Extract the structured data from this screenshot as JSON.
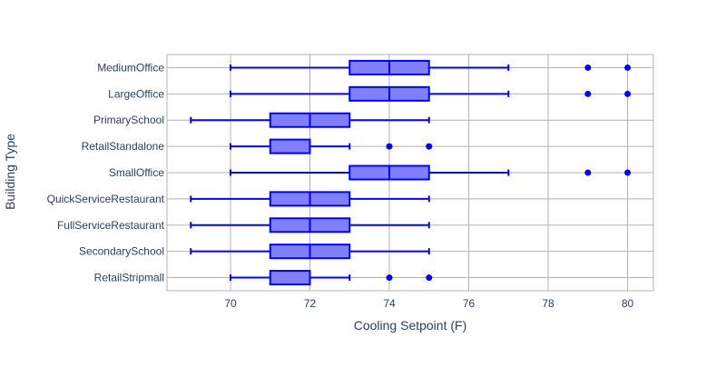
{
  "chart_data": {
    "type": "box",
    "orientation": "horizontal",
    "xlabel": "Cooling Setpoint (F)",
    "ylabel": "Building Type",
    "xlim": [
      68.4,
      80.65
    ],
    "xticks": [
      70,
      72,
      74,
      76,
      78,
      80
    ],
    "grid": true,
    "legend": "none",
    "categories": [
      "MediumOffice",
      "LargeOffice",
      "PrimarySchool",
      "RetailStandalone",
      "SmallOffice",
      "QuickServiceRestaurant",
      "FullServiceRestaurant",
      "SecondarySchool",
      "RetailStripmall"
    ],
    "boxes": [
      {
        "category": "MediumOffice",
        "min": 70,
        "q1": 73,
        "median": 74,
        "q3": 75,
        "max": 77,
        "outliers": [
          79,
          80
        ]
      },
      {
        "category": "LargeOffice",
        "min": 70,
        "q1": 73,
        "median": 74,
        "q3": 75,
        "max": 77,
        "outliers": [
          79,
          80
        ]
      },
      {
        "category": "PrimarySchool",
        "min": 69,
        "q1": 71,
        "median": 72,
        "q3": 73,
        "max": 75,
        "outliers": []
      },
      {
        "category": "RetailStandalone",
        "min": 70,
        "q1": 71,
        "median": 72,
        "q3": 72,
        "max": 73,
        "outliers": [
          74,
          75
        ]
      },
      {
        "category": "SmallOffice",
        "min": 70,
        "q1": 73,
        "median": 74,
        "q3": 75,
        "max": 77,
        "outliers": [
          79,
          80
        ]
      },
      {
        "category": "QuickServiceRestaurant",
        "min": 69,
        "q1": 71,
        "median": 72,
        "q3": 73,
        "max": 75,
        "outliers": []
      },
      {
        "category": "FullServiceRestaurant",
        "min": 69,
        "q1": 71,
        "median": 72,
        "q3": 73,
        "max": 75,
        "outliers": []
      },
      {
        "category": "SecondarySchool",
        "min": 69,
        "q1": 71,
        "median": 72,
        "q3": 73,
        "max": 75,
        "outliers": []
      },
      {
        "category": "RetailStripmall",
        "min": 70,
        "q1": 71,
        "median": 72,
        "q3": 72,
        "max": 73,
        "outliers": [
          74,
          75
        ]
      }
    ],
    "colors": {
      "line": "#0000ff",
      "fill": "#8080ff",
      "grid": "#b3b3b3",
      "axis_text": "#2a3f5f",
      "background": "#ffffff"
    }
  }
}
